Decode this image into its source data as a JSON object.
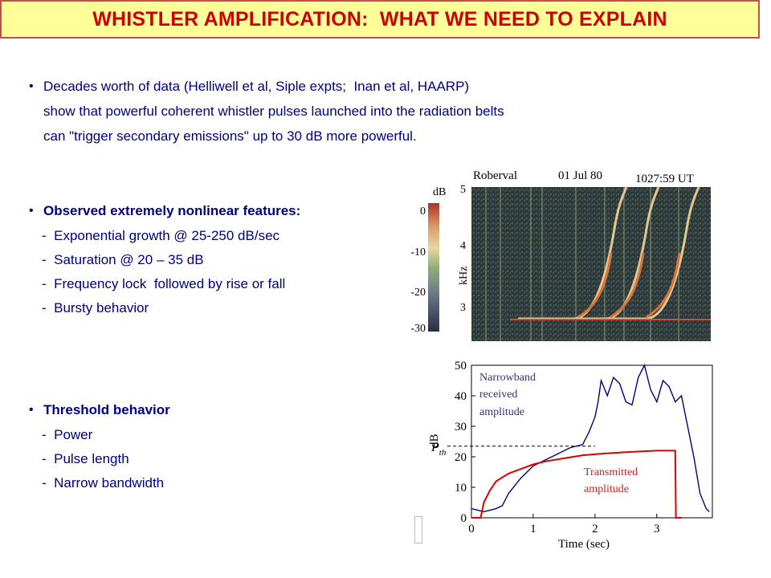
{
  "title": "WHISTLER AMPLIFICATION:  WHAT WE NEED TO EXPLAIN",
  "colors": {
    "title_bg": "#ffff99",
    "title_border": "#c0504d",
    "title_text": "#cc0000",
    "body_text": "#000080"
  },
  "section1": {
    "lines": [
      "Decades worth of data (Helliwell et al, Siple expts;  Inan et al, HAARP)",
      "show that powerful coherent whistler pulses launched into the radiation belts",
      "can \"trigger secondary emissions\" up to 30 dB more powerful."
    ]
  },
  "section2": {
    "heading": "Observed extremely nonlinear features:",
    "items": [
      "-  Exponential growth @ 25-250 dB/sec",
      "-  Saturation @ 20 – 35 dB",
      "-  Frequency lock  followed by rise or fall",
      "-  Bursty behavior"
    ]
  },
  "section3": {
    "heading": "Threshold behavior",
    "items": [
      "-  Power",
      "-  Pulse length",
      "-  Narrow bandwidth"
    ]
  },
  "spectrogram": {
    "station": "Roberval",
    "date": "01 Jul 80",
    "time": "1027:59 UT",
    "colorbar_label": "dB",
    "colorbar_ticks": [
      "0",
      "-10",
      "-20",
      "-30"
    ],
    "y_label": "kHz",
    "y_ticks": [
      "5",
      "4",
      "3"
    ]
  },
  "chart_data": {
    "type": "line",
    "xlabel": "Time (sec)",
    "ylabel": "dB",
    "xlim": [
      0,
      3.9
    ],
    "ylim": [
      0,
      50
    ],
    "x_ticks": [
      "0",
      "1",
      "2",
      "3"
    ],
    "y_ticks": [
      "0",
      "10",
      "20",
      "30",
      "40",
      "50"
    ],
    "threshold_label": "P",
    "threshold_sub": "th",
    "threshold_value": 23.5,
    "annotations": {
      "received": [
        "Narrowband",
        "received",
        "amplitude"
      ],
      "transmitted": [
        "Transmitted",
        "amplitude"
      ]
    },
    "series": [
      {
        "name": "Narrowband received amplitude",
        "color": "#000080",
        "x": [
          0,
          0.2,
          0.4,
          0.5,
          0.6,
          0.8,
          1.0,
          1.2,
          1.4,
          1.6,
          1.8,
          1.9,
          2.0,
          2.05,
          2.1,
          2.2,
          2.3,
          2.4,
          2.5,
          2.6,
          2.7,
          2.8,
          2.9,
          3.0,
          3.1,
          3.2,
          3.3,
          3.4,
          3.5,
          3.6,
          3.7,
          3.8,
          3.85
        ],
        "y": [
          3,
          2,
          3,
          4,
          8,
          13,
          17,
          19,
          21,
          23,
          24,
          28,
          33,
          38,
          45,
          40,
          46,
          44,
          38,
          37,
          46,
          50,
          42,
          38,
          45,
          43,
          38,
          40,
          30,
          20,
          8,
          3,
          2
        ]
      },
      {
        "name": "Transmitted amplitude",
        "color": "#dd0000",
        "x": [
          0,
          0.15,
          0.2,
          0.3,
          0.4,
          0.6,
          0.8,
          1.0,
          1.2,
          1.5,
          1.8,
          2.1,
          2.5,
          3.0,
          3.2,
          3.3,
          3.31,
          3.4
        ],
        "y": [
          0,
          0,
          5,
          9,
          12,
          14.5,
          16,
          17.5,
          18.5,
          19.5,
          20.5,
          21,
          21.5,
          22,
          22,
          22,
          0,
          0
        ]
      }
    ]
  }
}
